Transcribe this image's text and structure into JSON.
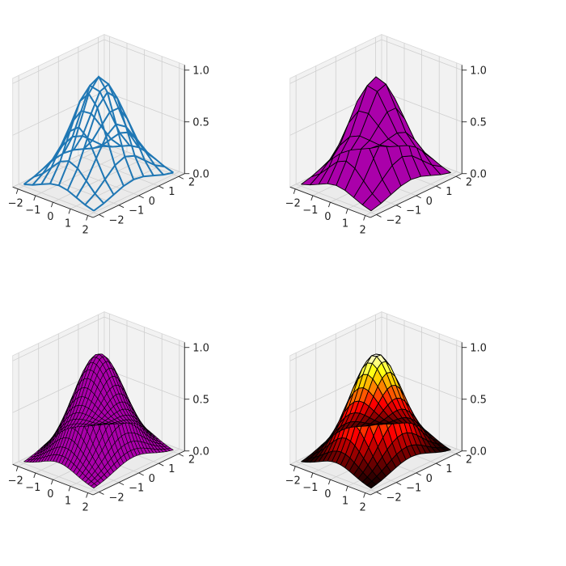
{
  "chart_data": [
    {
      "type": "surface-3d",
      "style": "wireframe",
      "function": "exp(-(x^2+y^2)/2)",
      "grid_size": 9,
      "x_range": [
        -2,
        2
      ],
      "y_range": [
        -2,
        2
      ],
      "z_range": [
        0,
        1
      ],
      "x_ticks": [
        "−2",
        "−1",
        "0",
        "1",
        "2"
      ],
      "y_ticks": [
        "−2",
        "−1",
        "0",
        "1",
        "2"
      ],
      "z_ticks": [
        "0.0",
        "0.5",
        "1.0"
      ],
      "line_color": "#1f77b4",
      "face_color": "none",
      "title": "",
      "xlabel": "",
      "ylabel": "",
      "zlabel": ""
    },
    {
      "type": "surface-3d",
      "style": "surface",
      "function": "exp(-(x^2+y^2)/2)",
      "grid_size": 9,
      "x_range": [
        -2,
        2
      ],
      "y_range": [
        -2,
        2
      ],
      "z_range": [
        0,
        1
      ],
      "x_ticks": [
        "−2",
        "−1",
        "0",
        "1",
        "2"
      ],
      "y_ticks": [
        "−2",
        "−1",
        "0",
        "1",
        "2"
      ],
      "z_ticks": [
        "0.0",
        "0.5",
        "1.0"
      ],
      "face_color": "#aa00aa",
      "edge_color": "#000000",
      "title": "",
      "xlabel": "",
      "ylabel": "",
      "zlabel": ""
    },
    {
      "type": "surface-3d",
      "style": "surface",
      "function": "exp(-(x^2+y^2)/2)",
      "grid_size": 25,
      "x_range": [
        -2,
        2
      ],
      "y_range": [
        -2,
        2
      ],
      "z_range": [
        0,
        1
      ],
      "x_ticks": [
        "−2",
        "−1",
        "0",
        "1",
        "2"
      ],
      "y_ticks": [
        "−2",
        "−1",
        "0",
        "1",
        "2"
      ],
      "z_ticks": [
        "0.0",
        "0.5",
        "1.0"
      ],
      "face_color": "#aa00aa",
      "edge_color": "#000000",
      "title": "",
      "xlabel": "",
      "ylabel": "",
      "zlabel": ""
    },
    {
      "type": "surface-3d",
      "style": "surface",
      "function": "exp(-(x^2+y^2)/2)",
      "grid_size": 17,
      "x_range": [
        -2,
        2
      ],
      "y_range": [
        -2,
        2
      ],
      "z_range": [
        0,
        1
      ],
      "x_ticks": [
        "−2",
        "−1",
        "0",
        "1",
        "2"
      ],
      "y_ticks": [
        "−2",
        "−1",
        "0",
        "1",
        "2"
      ],
      "z_ticks": [
        "0.0",
        "0.5",
        "1.0"
      ],
      "colormap": "hot",
      "edge_color": "#000000",
      "title": "",
      "xlabel": "",
      "ylabel": "",
      "zlabel": ""
    }
  ]
}
